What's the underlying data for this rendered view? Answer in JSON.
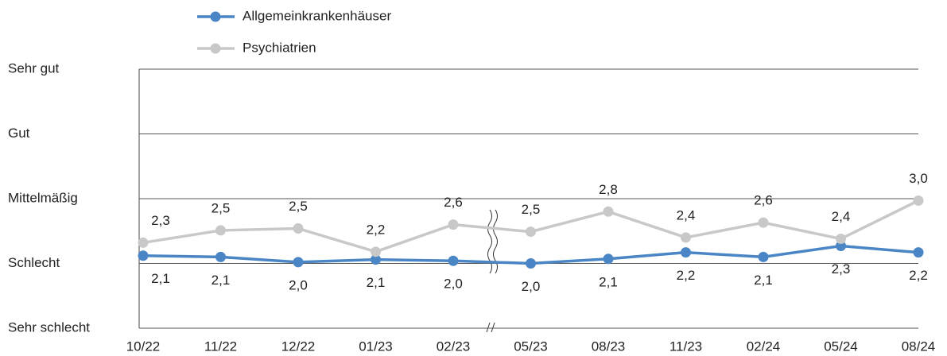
{
  "chart_data": {
    "type": "line",
    "categories": [
      "10/22",
      "11/22",
      "12/22",
      "01/23",
      "02/23",
      "05/23",
      "08/23",
      "11/23",
      "02/24",
      "05/24",
      "08/24"
    ],
    "series": [
      {
        "name": "Allgemeinkrankenhäuser",
        "color": "#4a86c5",
        "values": [
          2.12,
          2.1,
          2.02,
          2.06,
          2.04,
          2.0,
          2.07,
          2.17,
          2.1,
          2.27,
          2.17
        ],
        "value_labels": [
          "2,1",
          "2,1",
          "2,0",
          "2,1",
          "2,0",
          "2,0",
          "2,1",
          "2,2",
          "2,1",
          "2,3",
          "2,2"
        ]
      },
      {
        "name": "Psychiatrien",
        "color": "#c8c8c8",
        "values": [
          2.32,
          2.51,
          2.54,
          2.18,
          2.6,
          2.49,
          2.8,
          2.4,
          2.63,
          2.38,
          2.97
        ],
        "value_labels": [
          "2,3",
          "2,5",
          "2,5",
          "2,2",
          "2,6",
          "2,5",
          "2,8",
          "2,4",
          "2,6",
          "2,4",
          "3,0"
        ]
      }
    ],
    "ylim": [
      1,
      5
    ],
    "yticks": [
      {
        "value": 1,
        "label": "Sehr schlecht"
      },
      {
        "value": 2,
        "label": "Schlecht"
      },
      {
        "value": 3,
        "label": "Mittelmäßig"
      },
      {
        "value": 4,
        "label": "Gut"
      },
      {
        "value": 5,
        "label": "Sehr gut"
      }
    ],
    "grid": true
  }
}
